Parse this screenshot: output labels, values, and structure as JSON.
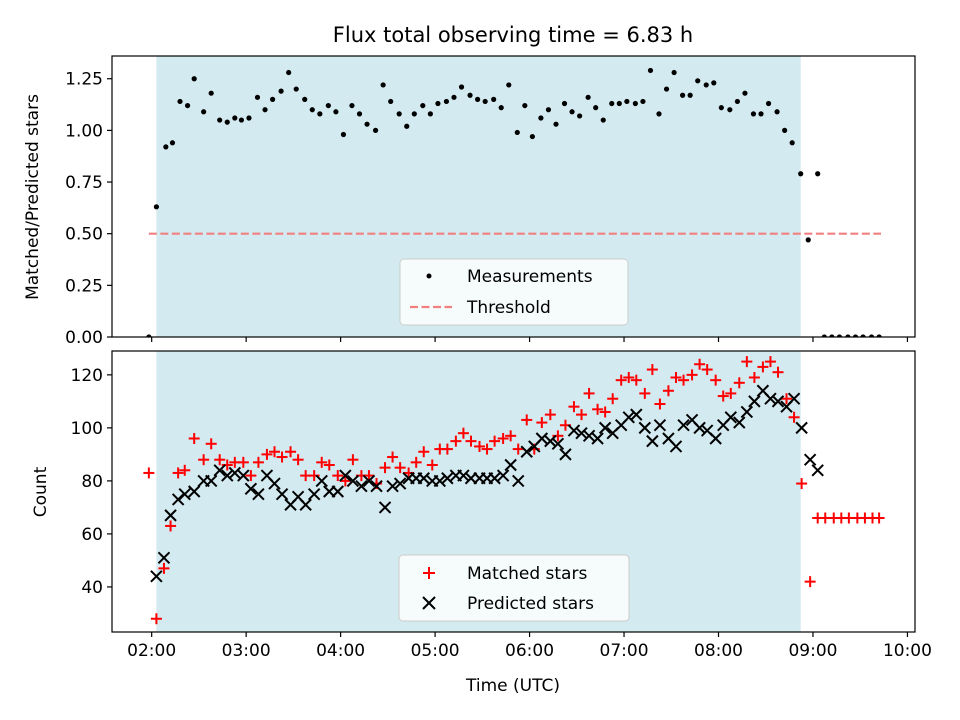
{
  "figure": {
    "title": "Flux total observing time = 6.83 h",
    "xlabel": "Time (UTC)",
    "xticks": [
      "02:00",
      "03:00",
      "04:00",
      "05:00",
      "06:00",
      "07:00",
      "08:00",
      "09:00",
      "10:00"
    ]
  },
  "chart_data": [
    {
      "type": "scatter",
      "title": "Flux total observing time = 6.83 h",
      "ylabel": "Matched/Predicted stars",
      "xlim": [
        1.58,
        10.08
      ],
      "ylim": [
        0.0,
        1.36
      ],
      "yticks": [
        "0.00",
        "0.25",
        "0.50",
        "0.75",
        "1.00",
        "1.25"
      ],
      "yticks_values": [
        0.0,
        0.25,
        0.5,
        0.75,
        1.0,
        1.25
      ],
      "shaded_region": {
        "x_start": 2.05,
        "x_end": 8.87,
        "color": "#d3eaf0"
      },
      "legend": {
        "position": "lower-center",
        "entries": [
          "Measurements",
          "Threshold"
        ]
      },
      "threshold": {
        "name": "Threshold",
        "x": [
          1.97,
          9.72
        ],
        "y": 0.5,
        "color": "#f08080"
      },
      "series": [
        {
          "name": "Measurements",
          "marker": "dot",
          "color": "#000000",
          "x": [
            1.97,
            2.05,
            2.15,
            2.22,
            2.3,
            2.38,
            2.45,
            2.55,
            2.63,
            2.72,
            2.8,
            2.88,
            2.95,
            3.03,
            3.12,
            3.2,
            3.28,
            3.37,
            3.45,
            3.53,
            3.62,
            3.7,
            3.78,
            3.87,
            3.95,
            4.03,
            4.12,
            4.2,
            4.28,
            4.37,
            4.45,
            4.53,
            4.62,
            4.7,
            4.78,
            4.87,
            4.95,
            5.03,
            5.12,
            5.2,
            5.28,
            5.37,
            5.45,
            5.53,
            5.62,
            5.7,
            5.78,
            5.87,
            5.95,
            6.03,
            6.12,
            6.2,
            6.28,
            6.37,
            6.45,
            6.53,
            6.62,
            6.7,
            6.78,
            6.87,
            6.95,
            7.03,
            7.12,
            7.2,
            7.28,
            7.37,
            7.45,
            7.53,
            7.62,
            7.7,
            7.78,
            7.87,
            7.95,
            8.03,
            8.12,
            8.2,
            8.28,
            8.37,
            8.45,
            8.53,
            8.62,
            8.7,
            8.78,
            8.87,
            8.95,
            9.05,
            9.12,
            9.2,
            9.28,
            9.37,
            9.45,
            9.53,
            9.62,
            9.7
          ],
          "y": [
            0.0,
            0.63,
            0.92,
            0.94,
            1.14,
            1.12,
            1.25,
            1.09,
            1.18,
            1.05,
            1.04,
            1.06,
            1.05,
            1.06,
            1.16,
            1.1,
            1.15,
            1.19,
            1.28,
            1.2,
            1.15,
            1.1,
            1.08,
            1.12,
            1.09,
            0.98,
            1.12,
            1.08,
            1.03,
            1.0,
            1.22,
            1.14,
            1.08,
            1.02,
            1.08,
            1.12,
            1.08,
            1.13,
            1.14,
            1.16,
            1.21,
            1.17,
            1.15,
            1.14,
            1.15,
            1.11,
            1.22,
            0.99,
            1.12,
            0.97,
            1.06,
            1.1,
            1.03,
            1.13,
            1.09,
            1.07,
            1.16,
            1.11,
            1.05,
            1.13,
            1.13,
            1.14,
            1.13,
            1.14,
            1.29,
            1.08,
            1.2,
            1.28,
            1.17,
            1.17,
            1.24,
            1.22,
            1.23,
            1.11,
            1.1,
            1.14,
            1.18,
            1.08,
            1.08,
            1.13,
            1.09,
            1.0,
            0.94,
            0.79,
            0.47,
            0.79,
            0.0,
            0.0,
            0.0,
            0.0,
            0.0,
            0.0,
            0.0,
            0.0
          ]
        }
      ]
    },
    {
      "type": "scatter",
      "ylabel": "Count",
      "xlabel": "Time (UTC)",
      "xlim": [
        1.58,
        10.08
      ],
      "ylim": [
        23,
        129
      ],
      "yticks": [
        "40",
        "60",
        "80",
        "100",
        "120"
      ],
      "yticks_values": [
        40,
        60,
        80,
        100,
        120
      ],
      "xticks": [
        "02:00",
        "03:00",
        "04:00",
        "05:00",
        "06:00",
        "07:00",
        "08:00",
        "09:00",
        "10:00"
      ],
      "xticks_values": [
        2,
        3,
        4,
        5,
        6,
        7,
        8,
        9,
        10
      ],
      "shaded_region": {
        "x_start": 2.05,
        "x_end": 8.87,
        "color": "#d3eaf0"
      },
      "legend": {
        "position": "lower-center",
        "entries": [
          "Matched stars",
          "Predicted stars"
        ]
      },
      "series": [
        {
          "name": "Matched stars",
          "marker": "plus",
          "color": "#ff0000",
          "x": [
            1.97,
            2.05,
            2.13,
            2.2,
            2.28,
            2.35,
            2.45,
            2.55,
            2.63,
            2.72,
            2.8,
            2.88,
            2.97,
            3.05,
            3.13,
            3.22,
            3.3,
            3.38,
            3.47,
            3.55,
            3.63,
            3.72,
            3.8,
            3.88,
            3.97,
            4.05,
            4.13,
            4.22,
            4.3,
            4.38,
            4.47,
            4.55,
            4.63,
            4.72,
            4.8,
            4.88,
            4.97,
            5.05,
            5.13,
            5.22,
            5.3,
            5.38,
            5.47,
            5.55,
            5.63,
            5.72,
            5.8,
            5.88,
            5.97,
            6.05,
            6.13,
            6.22,
            6.3,
            6.38,
            6.47,
            6.55,
            6.63,
            6.72,
            6.8,
            6.88,
            6.97,
            7.05,
            7.13,
            7.22,
            7.3,
            7.38,
            7.47,
            7.55,
            7.63,
            7.72,
            7.8,
            7.88,
            7.97,
            8.05,
            8.13,
            8.22,
            8.3,
            8.38,
            8.47,
            8.55,
            8.63,
            8.72,
            8.8,
            8.88,
            8.97,
            9.05,
            9.13,
            9.22,
            9.3,
            9.38,
            9.47,
            9.55,
            9.63,
            9.7
          ],
          "y": [
            83,
            28,
            47,
            63,
            83,
            84,
            96,
            88,
            94,
            88,
            86,
            87,
            87,
            82,
            87,
            90,
            91,
            89,
            91,
            88,
            82,
            82,
            87,
            86,
            82,
            80,
            88,
            82,
            82,
            79,
            85,
            89,
            85,
            83,
            87,
            91,
            86,
            92,
            92,
            95,
            98,
            95,
            93,
            92,
            95,
            96,
            97,
            92,
            103,
            92,
            102,
            105,
            97,
            101,
            108,
            105,
            113,
            107,
            106,
            111,
            118,
            119,
            118,
            113,
            122,
            109,
            114,
            119,
            118,
            120,
            124,
            122,
            118,
            112,
            113,
            117,
            125,
            119,
            123,
            125,
            121,
            111,
            104,
            79,
            42,
            66,
            66,
            66,
            66,
            66,
            66,
            66,
            66,
            66
          ]
        },
        {
          "name": "Predicted stars",
          "marker": "x",
          "color": "#000000",
          "x": [
            2.05,
            2.13,
            2.2,
            2.28,
            2.35,
            2.45,
            2.55,
            2.63,
            2.72,
            2.8,
            2.88,
            2.97,
            3.05,
            3.13,
            3.22,
            3.3,
            3.38,
            3.47,
            3.55,
            3.63,
            3.72,
            3.8,
            3.88,
            3.97,
            4.05,
            4.13,
            4.22,
            4.3,
            4.38,
            4.47,
            4.55,
            4.63,
            4.72,
            4.8,
            4.88,
            4.97,
            5.05,
            5.13,
            5.22,
            5.3,
            5.38,
            5.47,
            5.55,
            5.63,
            5.72,
            5.8,
            5.88,
            5.97,
            6.05,
            6.13,
            6.22,
            6.3,
            6.38,
            6.47,
            6.55,
            6.63,
            6.72,
            6.8,
            6.88,
            6.97,
            7.05,
            7.13,
            7.22,
            7.3,
            7.38,
            7.47,
            7.55,
            7.63,
            7.72,
            7.8,
            7.88,
            7.97,
            8.05,
            8.13,
            8.22,
            8.3,
            8.38,
            8.47,
            8.55,
            8.63,
            8.72,
            8.8,
            8.88,
            8.97,
            9.05
          ],
          "y": [
            44,
            51,
            67,
            73,
            75,
            76,
            80,
            80,
            84,
            82,
            83,
            82,
            77,
            75,
            82,
            79,
            75,
            71,
            74,
            71,
            75,
            80,
            76,
            76,
            82,
            80,
            78,
            80,
            78,
            70,
            78,
            79,
            81,
            81,
            81,
            80,
            80,
            81,
            82,
            82,
            81,
            81,
            81,
            81,
            82,
            86,
            80,
            91,
            93,
            96,
            95,
            94,
            90,
            99,
            98,
            97,
            96,
            100,
            98,
            101,
            104,
            105,
            100,
            95,
            101,
            96,
            93,
            101,
            103,
            100,
            99,
            96,
            101,
            104,
            102,
            106,
            110,
            114,
            111,
            110,
            108,
            111,
            100,
            88,
            84
          ]
        }
      ]
    }
  ]
}
